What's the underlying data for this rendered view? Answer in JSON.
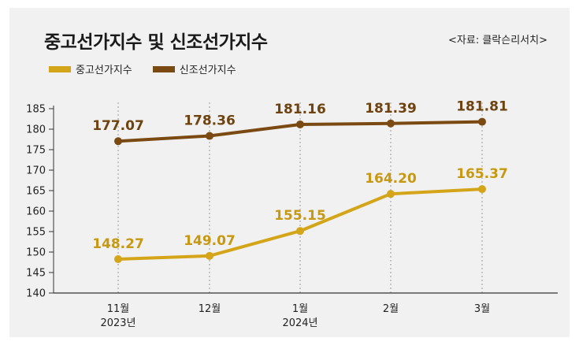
{
  "title": "중고선가지수 및 신조선가지수",
  "source": "<자료: 클락슨리서치>",
  "colors": {
    "secondhand": "#d4a519",
    "newbuilding": "#7a4a12",
    "secondhand_label": "#c79812",
    "newbuilding_label": "#6e4310"
  },
  "chart_data": {
    "type": "line",
    "title": "중고선가지수 및 신조선가지수",
    "categories": [
      "11월",
      "12월",
      "1월",
      "2월",
      "3월"
    ],
    "category_sublabels": [
      "2023년",
      "",
      "2024년",
      "",
      ""
    ],
    "series": [
      {
        "name": "중고선가지수",
        "values": [
          148.27,
          149.07,
          155.15,
          164.2,
          165.37
        ],
        "labels": [
          "148.27",
          "149.07",
          "155.15",
          "164.20",
          "165.37"
        ]
      },
      {
        "name": "신조선가지수",
        "values": [
          177.07,
          178.36,
          181.16,
          181.39,
          181.81
        ],
        "labels": [
          "177.07",
          "178.36",
          "181.16",
          "181.39",
          "181.81"
        ]
      }
    ],
    "ylim": [
      140,
      185
    ],
    "yticks": [
      140,
      145,
      150,
      155,
      160,
      165,
      170,
      175,
      180,
      185
    ],
    "xlabel": "",
    "ylabel": "",
    "legend": "top-left"
  }
}
